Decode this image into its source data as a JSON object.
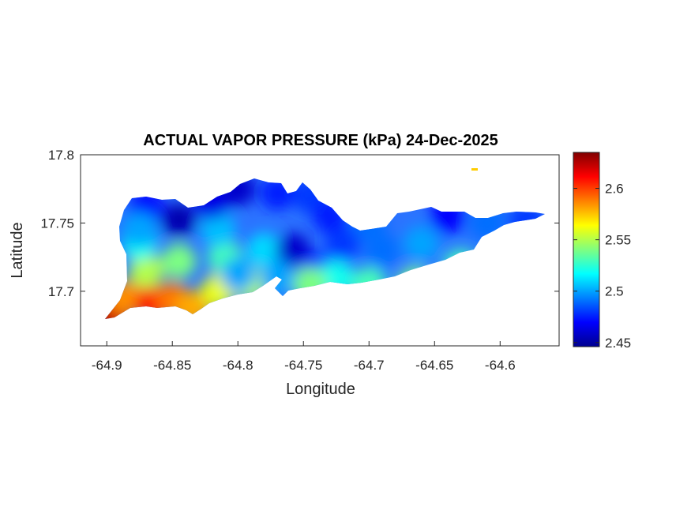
{
  "chart_data": {
    "type": "heatmap",
    "title": "ACTUAL VAPOR PRESSURE (kPa) 24-Dec-2025",
    "xlabel": "Longitude",
    "ylabel": "Latitude",
    "xlim": [
      -64.92,
      -64.555
    ],
    "ylim": [
      17.66,
      17.8
    ],
    "x_ticks": [
      -64.9,
      -64.85,
      -64.8,
      -64.75,
      -64.7,
      -64.65,
      -64.6
    ],
    "x_tick_labels": [
      "-64.9",
      "-64.85",
      "-64.8",
      "-64.75",
      "-64.7",
      "-64.65",
      "-64.6"
    ],
    "y_ticks": [
      17.7,
      17.75,
      17.8
    ],
    "y_tick_labels": [
      "17.7",
      "17.75",
      "17.8"
    ],
    "colorbar": {
      "colormap": "jet",
      "range": [
        2.446,
        2.635
      ],
      "ticks": [
        2.45,
        2.5,
        2.55,
        2.6
      ],
      "tick_labels": [
        "2.45",
        "2.5",
        "2.55",
        "2.6"
      ]
    },
    "field_samples": [
      {
        "lon": -64.9,
        "lat": 17.68,
        "value": 2.635
      },
      {
        "lon": -64.893,
        "lat": 17.687,
        "value": 2.62
      },
      {
        "lon": -64.886,
        "lat": 17.695,
        "value": 2.585
      },
      {
        "lon": -64.865,
        "lat": 17.692,
        "value": 2.61
      },
      {
        "lon": -64.85,
        "lat": 17.694,
        "value": 2.59
      },
      {
        "lon": -64.835,
        "lat": 17.688,
        "value": 2.58
      },
      {
        "lon": -64.815,
        "lat": 17.7,
        "value": 2.56
      },
      {
        "lon": -64.79,
        "lat": 17.705,
        "value": 2.55
      },
      {
        "lon": -64.87,
        "lat": 17.715,
        "value": 2.55
      },
      {
        "lon": -64.875,
        "lat": 17.735,
        "value": 2.52
      },
      {
        "lon": -64.845,
        "lat": 17.722,
        "value": 2.54
      },
      {
        "lon": -64.81,
        "lat": 17.725,
        "value": 2.53
      },
      {
        "lon": -64.815,
        "lat": 17.745,
        "value": 2.505
      },
      {
        "lon": -64.8,
        "lat": 17.712,
        "value": 2.5
      },
      {
        "lon": -64.78,
        "lat": 17.73,
        "value": 2.51
      },
      {
        "lon": -64.758,
        "lat": 17.73,
        "value": 2.46
      },
      {
        "lon": -64.74,
        "lat": 17.715,
        "value": 2.47
      },
      {
        "lon": -64.725,
        "lat": 17.71,
        "value": 2.52
      },
      {
        "lon": -64.7,
        "lat": 17.705,
        "value": 2.53
      },
      {
        "lon": -64.665,
        "lat": 17.705,
        "value": 2.54
      },
      {
        "lon": -64.63,
        "lat": 17.718,
        "value": 2.53
      },
      {
        "lon": -64.72,
        "lat": 17.735,
        "value": 2.48
      },
      {
        "lon": -64.69,
        "lat": 17.73,
        "value": 2.49
      },
      {
        "lon": -64.66,
        "lat": 17.735,
        "value": 2.5
      },
      {
        "lon": -64.64,
        "lat": 17.755,
        "value": 2.47
      },
      {
        "lon": -64.61,
        "lat": 17.75,
        "value": 2.49
      },
      {
        "lon": -64.58,
        "lat": 17.752,
        "value": 2.48
      },
      {
        "lon": -64.87,
        "lat": 17.762,
        "value": 2.47
      },
      {
        "lon": -64.845,
        "lat": 17.752,
        "value": 2.455
      },
      {
        "lon": -64.82,
        "lat": 17.765,
        "value": 2.465
      },
      {
        "lon": -64.8,
        "lat": 17.775,
        "value": 2.46
      },
      {
        "lon": -64.77,
        "lat": 17.772,
        "value": 2.475
      },
      {
        "lon": -64.745,
        "lat": 17.77,
        "value": 2.48
      },
      {
        "lon": -64.73,
        "lat": 17.755,
        "value": 2.475
      },
      {
        "lon": -64.7,
        "lat": 17.75,
        "value": 2.49
      },
      {
        "lon": -64.875,
        "lat": 17.745,
        "value": 2.5
      },
      {
        "lon": -64.745,
        "lat": 17.705,
        "value": 2.54
      },
      {
        "lon": -64.77,
        "lat": 17.71,
        "value": 2.5
      }
    ]
  }
}
